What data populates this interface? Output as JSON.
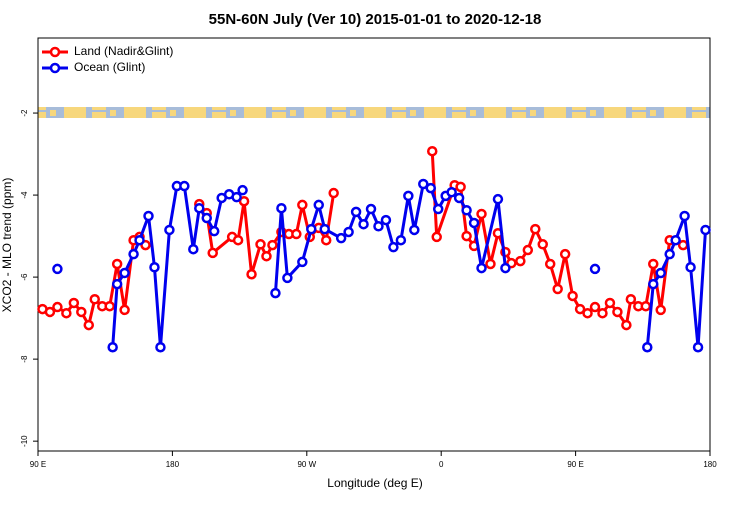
{
  "chart_data": {
    "type": "line",
    "title": "55N-60N July (Ver 10)   2015-01-01 to 2020-12-18",
    "x_label": "Longitude (deg E)",
    "y_label": "XCO2 - MLO trend (ppm)",
    "xlim": [
      90,
      540
    ],
    "xticks": [
      {
        "value": 90,
        "label": "90 E"
      },
      {
        "value": 180,
        "label": "180"
      },
      {
        "value": 270,
        "label": "90 W"
      },
      {
        "value": 360,
        "label": "0"
      },
      {
        "value": 450,
        "label": "90 E"
      },
      {
        "value": 540,
        "label": "180"
      }
    ],
    "ylim": [
      -10.24,
      -0.17
    ],
    "yticks": [
      -10,
      -8,
      -6,
      -4,
      -2
    ],
    "legend": "upper left",
    "series": [
      {
        "name": "Land (Nadir&Glint)",
        "color": "#ff0000",
        "x": [
          93,
          98,
          103,
          109,
          114,
          119,
          124,
          128,
          133,
          138,
          143,
          148,
          154,
          158,
          162,
          null,
          198,
          203,
          207,
          220,
          224,
          228,
          233,
          239,
          243,
          247,
          253,
          258,
          263,
          267,
          272,
          278,
          283,
          288,
          null,
          354,
          357,
          369,
          373,
          377,
          382,
          387,
          393,
          398,
          403,
          407,
          413,
          418,
          423,
          428,
          433,
          438,
          443,
          448,
          453,
          458,
          463,
          468,
          473,
          478,
          484,
          487,
          492,
          497,
          502,
          507,
          513,
          522
        ],
        "values": [
          -6.78,
          -6.85,
          -6.73,
          -6.88,
          -6.63,
          -6.85,
          -7.17,
          -6.54,
          -6.71,
          -6.71,
          -5.68,
          -6.8,
          -5.1,
          -5.02,
          -5.22,
          null,
          -4.22,
          -4.44,
          -5.41,
          -5.02,
          -5.1,
          -4.15,
          -5.93,
          -5.2,
          -5.49,
          -5.22,
          -4.9,
          -4.95,
          -4.95,
          -4.24,
          -5.02,
          -4.8,
          -5.1,
          -3.95,
          null,
          -2.93,
          -5.02,
          -3.76,
          -3.8,
          -5.0,
          -5.24,
          -4.46,
          -5.68,
          -4.93,
          -5.39,
          -5.66,
          -5.61,
          -5.34,
          -4.83,
          -5.2,
          -5.68,
          -6.29,
          -5.44,
          -6.46,
          -6.78,
          -6.88,
          -6.73,
          -6.88,
          -6.63,
          -6.85,
          -7.17,
          -6.54,
          -6.71,
          -6.71,
          -5.68,
          -6.8,
          -5.1,
          -5.22
        ]
      },
      {
        "name": "Ocean (Glint)",
        "color": "#0000ee",
        "x": [
          103,
          null,
          140,
          143,
          148,
          154,
          158,
          164,
          168,
          172,
          178,
          183,
          188,
          194,
          198,
          203,
          208,
          213,
          218,
          223,
          227,
          null,
          249,
          253,
          257,
          267,
          273,
          278,
          282,
          293,
          298,
          303,
          308,
          313,
          318,
          323,
          328,
          333,
          338,
          342,
          348,
          353,
          358,
          363,
          367,
          372,
          377,
          382,
          387,
          398,
          403,
          null,
          463,
          null,
          498,
          502,
          507,
          513,
          517,
          523,
          527,
          532,
          537
        ],
        "values": [
          -5.8,
          null,
          -7.71,
          -6.17,
          -5.9,
          -5.44,
          -5.1,
          -4.51,
          -5.76,
          -7.71,
          -4.85,
          -3.78,
          -3.78,
          -5.32,
          -4.32,
          -4.56,
          -4.88,
          -4.07,
          -3.98,
          -4.05,
          -3.88,
          null,
          -6.39,
          -4.32,
          -6.02,
          -5.63,
          -4.83,
          -4.24,
          -4.83,
          -5.05,
          -4.9,
          -4.41,
          -4.71,
          -4.34,
          -4.76,
          -4.61,
          -5.27,
          -5.1,
          -4.02,
          -4.85,
          -3.73,
          -3.83,
          -4.34,
          -4.02,
          -3.93,
          -4.07,
          -4.37,
          -4.68,
          -5.78,
          -4.1,
          -5.78,
          null,
          -5.8,
          null,
          -7.71,
          -6.17,
          -5.9,
          -5.44,
          -5.1,
          -4.51,
          -5.76,
          -7.71,
          -4.85
        ]
      }
    ]
  }
}
